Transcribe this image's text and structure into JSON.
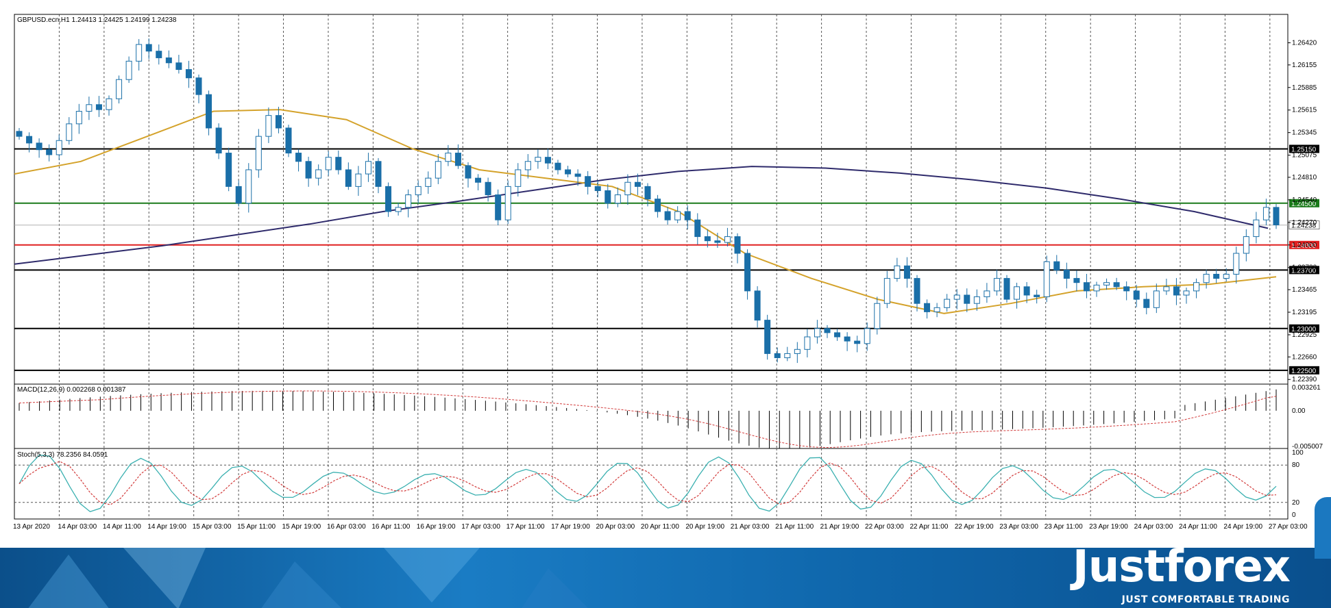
{
  "symbol_info": "GBPUSD.ecn,H1  1.24413 1.24425 1.24199 1.24238",
  "macd_label": "MACD(12,26,9) 0.002268 0.001387",
  "stoch_label": "Stoch(5,3,3) 78.2356 84.0591",
  "logo_text": "Justforex",
  "tagline": "JUST COMFORTABLE TRADING",
  "colors": {
    "bull": "#ffffff",
    "bear": "#1a6fa8",
    "candle_outline": "#1a6fa8",
    "ma_fast": "#d4a22a",
    "ma_slow": "#2e2a6b",
    "macd_signal": "#d23a3a",
    "stoch_main": "#3ab0b0",
    "stoch_signal": "#d23a3a"
  },
  "chart_data": {
    "type": "candlestick",
    "title": "GBPUSD.ecn,H1",
    "ohlc_readout": {
      "open": 1.24413,
      "high": 1.24425,
      "low": 1.24199,
      "close": 1.24238
    },
    "ylim": [
      1.2231,
      1.2676
    ],
    "price_ticks": [
      "1.26420",
      "1.26155",
      "1.25885",
      "1.25615",
      "1.25345",
      "1.25075",
      "1.24810",
      "1.24540",
      "1.24270",
      "1.24000",
      "1.23730",
      "1.23465",
      "1.23195",
      "1.22925",
      "1.22660",
      "1.22390"
    ],
    "time_ticks": [
      "13 Apr 2020",
      "14 Apr 03:00",
      "14 Apr 11:00",
      "14 Apr 19:00",
      "15 Apr 03:00",
      "15 Apr 11:00",
      "15 Apr 19:00",
      "16 Apr 03:00",
      "16 Apr 11:00",
      "16 Apr 19:00",
      "17 Apr 03:00",
      "17 Apr 11:00",
      "17 Apr 19:00",
      "20 Apr 03:00",
      "20 Apr 11:00",
      "20 Apr 19:00",
      "21 Apr 03:00",
      "21 Apr 11:00",
      "21 Apr 19:00",
      "22 Apr 03:00",
      "22 Apr 11:00",
      "22 Apr 19:00",
      "23 Apr 03:00",
      "23 Apr 11:00",
      "23 Apr 19:00",
      "24 Apr 03:00",
      "24 Apr 11:00",
      "24 Apr 19:00",
      "27 Apr 03:00"
    ],
    "horizontal_levels": [
      {
        "price": 1.2515,
        "label": "1.25150",
        "color": "#000000"
      },
      {
        "price": 1.245,
        "label": "1.24500",
        "color": "#1a7a1a"
      },
      {
        "price": 1.24238,
        "label": "1.24238",
        "color": "#b0b0b0"
      },
      {
        "price": 1.24,
        "label": "1.24000",
        "color": "#e02020"
      },
      {
        "price": 1.237,
        "label": "1.23700",
        "color": "#000000"
      },
      {
        "price": 1.23,
        "label": "1.23000",
        "color": "#000000"
      },
      {
        "price": 1.225,
        "label": "1.22500",
        "color": "#000000"
      }
    ],
    "close_path": [
      1.253,
      1.2522,
      1.2514,
      1.2508,
      1.2525,
      1.2545,
      1.256,
      1.2568,
      1.2562,
      1.2575,
      1.2598,
      1.262,
      1.264,
      1.2632,
      1.2624,
      1.2618,
      1.261,
      1.26,
      1.258,
      1.254,
      1.251,
      1.247,
      1.245,
      1.249,
      1.253,
      1.2555,
      1.254,
      1.251,
      1.25,
      1.248,
      1.249,
      1.2505,
      1.249,
      1.247,
      1.2485,
      1.25,
      1.247,
      1.244,
      1.2445,
      1.246,
      1.247,
      1.248,
      1.25,
      1.251,
      1.2495,
      1.248,
      1.2475,
      1.246,
      1.243,
      1.247,
      1.249,
      1.25,
      1.2505,
      1.2498,
      1.249,
      1.2485,
      1.2482,
      1.247,
      1.2465,
      1.245,
      1.246,
      1.2475,
      1.247,
      1.2455,
      1.244,
      1.243,
      1.244,
      1.243,
      1.241,
      1.2405,
      1.2403,
      1.241,
      1.239,
      1.2345,
      1.231,
      1.227,
      1.2265,
      1.227,
      1.2275,
      1.229,
      1.23,
      1.2295,
      1.229,
      1.2285,
      1.2282,
      1.23,
      1.233,
      1.236,
      1.2375,
      1.236,
      1.233,
      1.232,
      1.2325,
      1.2335,
      1.234,
      1.233,
      1.2338,
      1.2345,
      1.236,
      1.2335,
      1.235,
      1.234,
      1.2338,
      1.238,
      1.237,
      1.236,
      1.2355,
      1.2345,
      1.2352,
      1.2355,
      1.235,
      1.2345,
      1.2335,
      1.2325,
      1.2345,
      1.235,
      1.234,
      1.2345,
      1.2355,
      1.2365,
      1.236,
      1.2365,
      1.239,
      1.241,
      1.243,
      1.2445,
      1.2424
    ],
    "ma_slow_path": [
      1.2377,
      1.2388,
      1.2399,
      1.2412,
      1.2425,
      1.244,
      1.2452,
      1.2465,
      1.2478,
      1.2488,
      1.2494,
      1.2492,
      1.2486,
      1.2478,
      1.2468,
      1.2455,
      1.244,
      1.242
    ],
    "ma_fast_path": [
      1.2485,
      1.25,
      1.253,
      1.256,
      1.2562,
      1.255,
      1.2515,
      1.249,
      1.248,
      1.247,
      1.244,
      1.239,
      1.236,
      1.2335,
      1.2318,
      1.233,
      1.2345,
      1.235,
      1.2353,
      1.2362
    ],
    "macd": {
      "range": [
        -0.005007,
        0.003261
      ],
      "ticks": [
        "0.003261",
        "0.00",
        "-0.005007"
      ]
    },
    "stoch": {
      "range": [
        0,
        100
      ],
      "ticks": [
        "100",
        "80",
        "20",
        "0"
      ],
      "levels": [
        80,
        20
      ]
    }
  }
}
